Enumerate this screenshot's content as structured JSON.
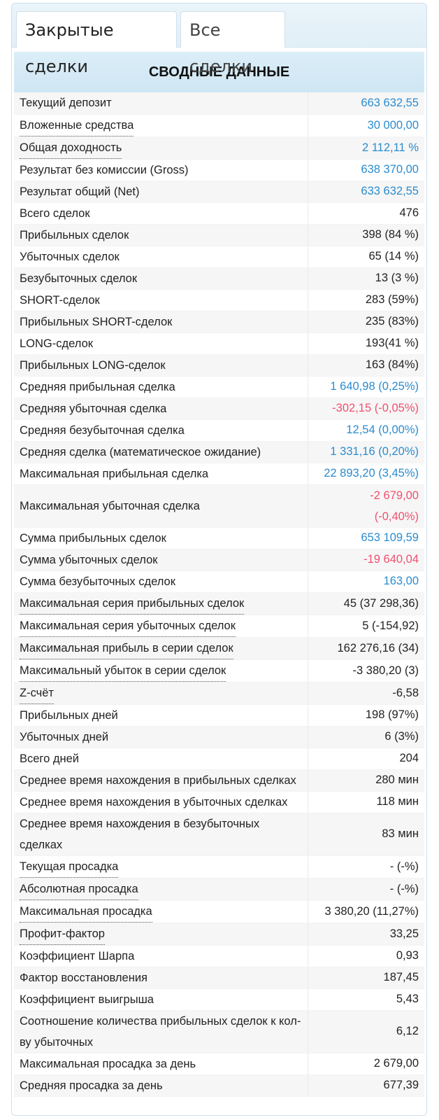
{
  "tabs": [
    {
      "label": "Закрытые сделки",
      "active": true
    },
    {
      "label": "Все сделки",
      "active": false
    }
  ],
  "header": "СВОДНЫЕ ДАННЫЕ",
  "colors": {
    "accent": "#2a8ccf",
    "negative": "#f0506e",
    "header_bg": "#d6ebf6"
  },
  "rows": [
    {
      "label": "Текущий депозит",
      "value": "663 632,55",
      "color": "blue"
    },
    {
      "label": "Вложенные средства",
      "value": "30 000,00",
      "color": "blue",
      "tooltip": true
    },
    {
      "label": "Общая доходность",
      "value": "2 112,11 %",
      "color": "blue",
      "tooltip": true
    },
    {
      "label": "Результат без комиссии (Gross)",
      "value": "638 370,00",
      "color": "blue"
    },
    {
      "label": "Результат общий (Net)",
      "value": "633 632,55",
      "color": "blue"
    },
    {
      "label": "Всего сделок",
      "value": "476"
    },
    {
      "label": "Прибыльных сделок",
      "value": "398 (84 %)"
    },
    {
      "label": "Убыточных сделок",
      "value": "65 (14 %)"
    },
    {
      "label": "Безубыточных сделок",
      "value": "13 (3 %)"
    },
    {
      "label": "SHORT-сделок",
      "value": "283 (59%)"
    },
    {
      "label": "Прибыльных SHORT-сделок",
      "value": "235 (83%)"
    },
    {
      "label": "LONG-сделок",
      "value": "193(41 %)"
    },
    {
      "label": "Прибыльных LONG-сделок",
      "value": "163 (84%)"
    },
    {
      "label": "Средняя прибыльная сделка",
      "value": "1 640,98 (0,25%)",
      "color": "blue"
    },
    {
      "label": "Средняя убыточная сделка",
      "value": "-302,15 (-0,05%)",
      "color": "red"
    },
    {
      "label": "Средняя безубыточная сделка",
      "value": "12,54 (0,00%)",
      "color": "blue"
    },
    {
      "label": "Средняя сделка (математическое ожидание)",
      "value": "1 331,16 (0,20%)",
      "color": "blue"
    },
    {
      "label": "Максимальная прибыльная сделка",
      "value": "22 893,20 (3,45%)",
      "color": "blue"
    },
    {
      "label": "Максимальная убыточная сделка",
      "value": "-2 679,00",
      "value2": "(-0,40%)",
      "color": "red",
      "tall": true
    },
    {
      "label": "Сумма прибыльных сделок",
      "value": "653 109,59",
      "color": "blue"
    },
    {
      "label": "Сумма убыточных сделок",
      "value": "-19 640,04",
      "color": "red"
    },
    {
      "label": "Сумма безубыточных сделок",
      "value": "163,00",
      "color": "blue"
    },
    {
      "label": "Максимальная серия прибыльных сделок",
      "value": "45 (37 298,36)",
      "tooltip": true
    },
    {
      "label": "Максимальная серия убыточных сделок",
      "value": "5 (-154,92)",
      "tooltip": true
    },
    {
      "label": "Максимальная прибыль в серии сделок",
      "value": "162 276,16 (34)",
      "tooltip": true
    },
    {
      "label": "Максимальный убыток в серии сделок",
      "value": "-3 380,20 (3)",
      "tooltip": true
    },
    {
      "label": "Z-счёт",
      "value": "-6,58",
      "tooltip": true
    },
    {
      "label": "Прибыльных дней",
      "value": "198 (97%)"
    },
    {
      "label": "Убыточных дней",
      "value": "6 (3%)"
    },
    {
      "label": "Всего дней",
      "value": "204"
    },
    {
      "label": "Среднее время нахождения в прибыльных сделках",
      "value": "280 мин"
    },
    {
      "label": "Среднее время нахождения в убыточных сделках",
      "value": "118 мин"
    },
    {
      "label": "Среднее время нахождения в безубыточных сделках",
      "value": "83 мин",
      "tall": true
    },
    {
      "label": "Текущая просадка",
      "value": "- (-%)",
      "tooltip": true
    },
    {
      "label": "Абсолютная просадка",
      "value": "- (-%)",
      "tooltip": true
    },
    {
      "label": "Максимальная просадка",
      "value": "3 380,20 (11,27%)",
      "tooltip": true
    },
    {
      "label": "Профит-фактор",
      "value": "33,25",
      "tooltip": true
    },
    {
      "label": "Коэффициент Шарпа",
      "value": "0,93"
    },
    {
      "label": "Фактор восстановления",
      "value": "187,45"
    },
    {
      "label": "Коэффициент выигрыша",
      "value": "5,43"
    },
    {
      "label": "Соотношение количества прибыльных сделок к кол-ву убыточных",
      "value": "6,12",
      "tall": true
    },
    {
      "label": "Максимальная просадка за день",
      "value": "2 679,00"
    },
    {
      "label": "Средняя просадка за день",
      "value": "677,39"
    }
  ]
}
